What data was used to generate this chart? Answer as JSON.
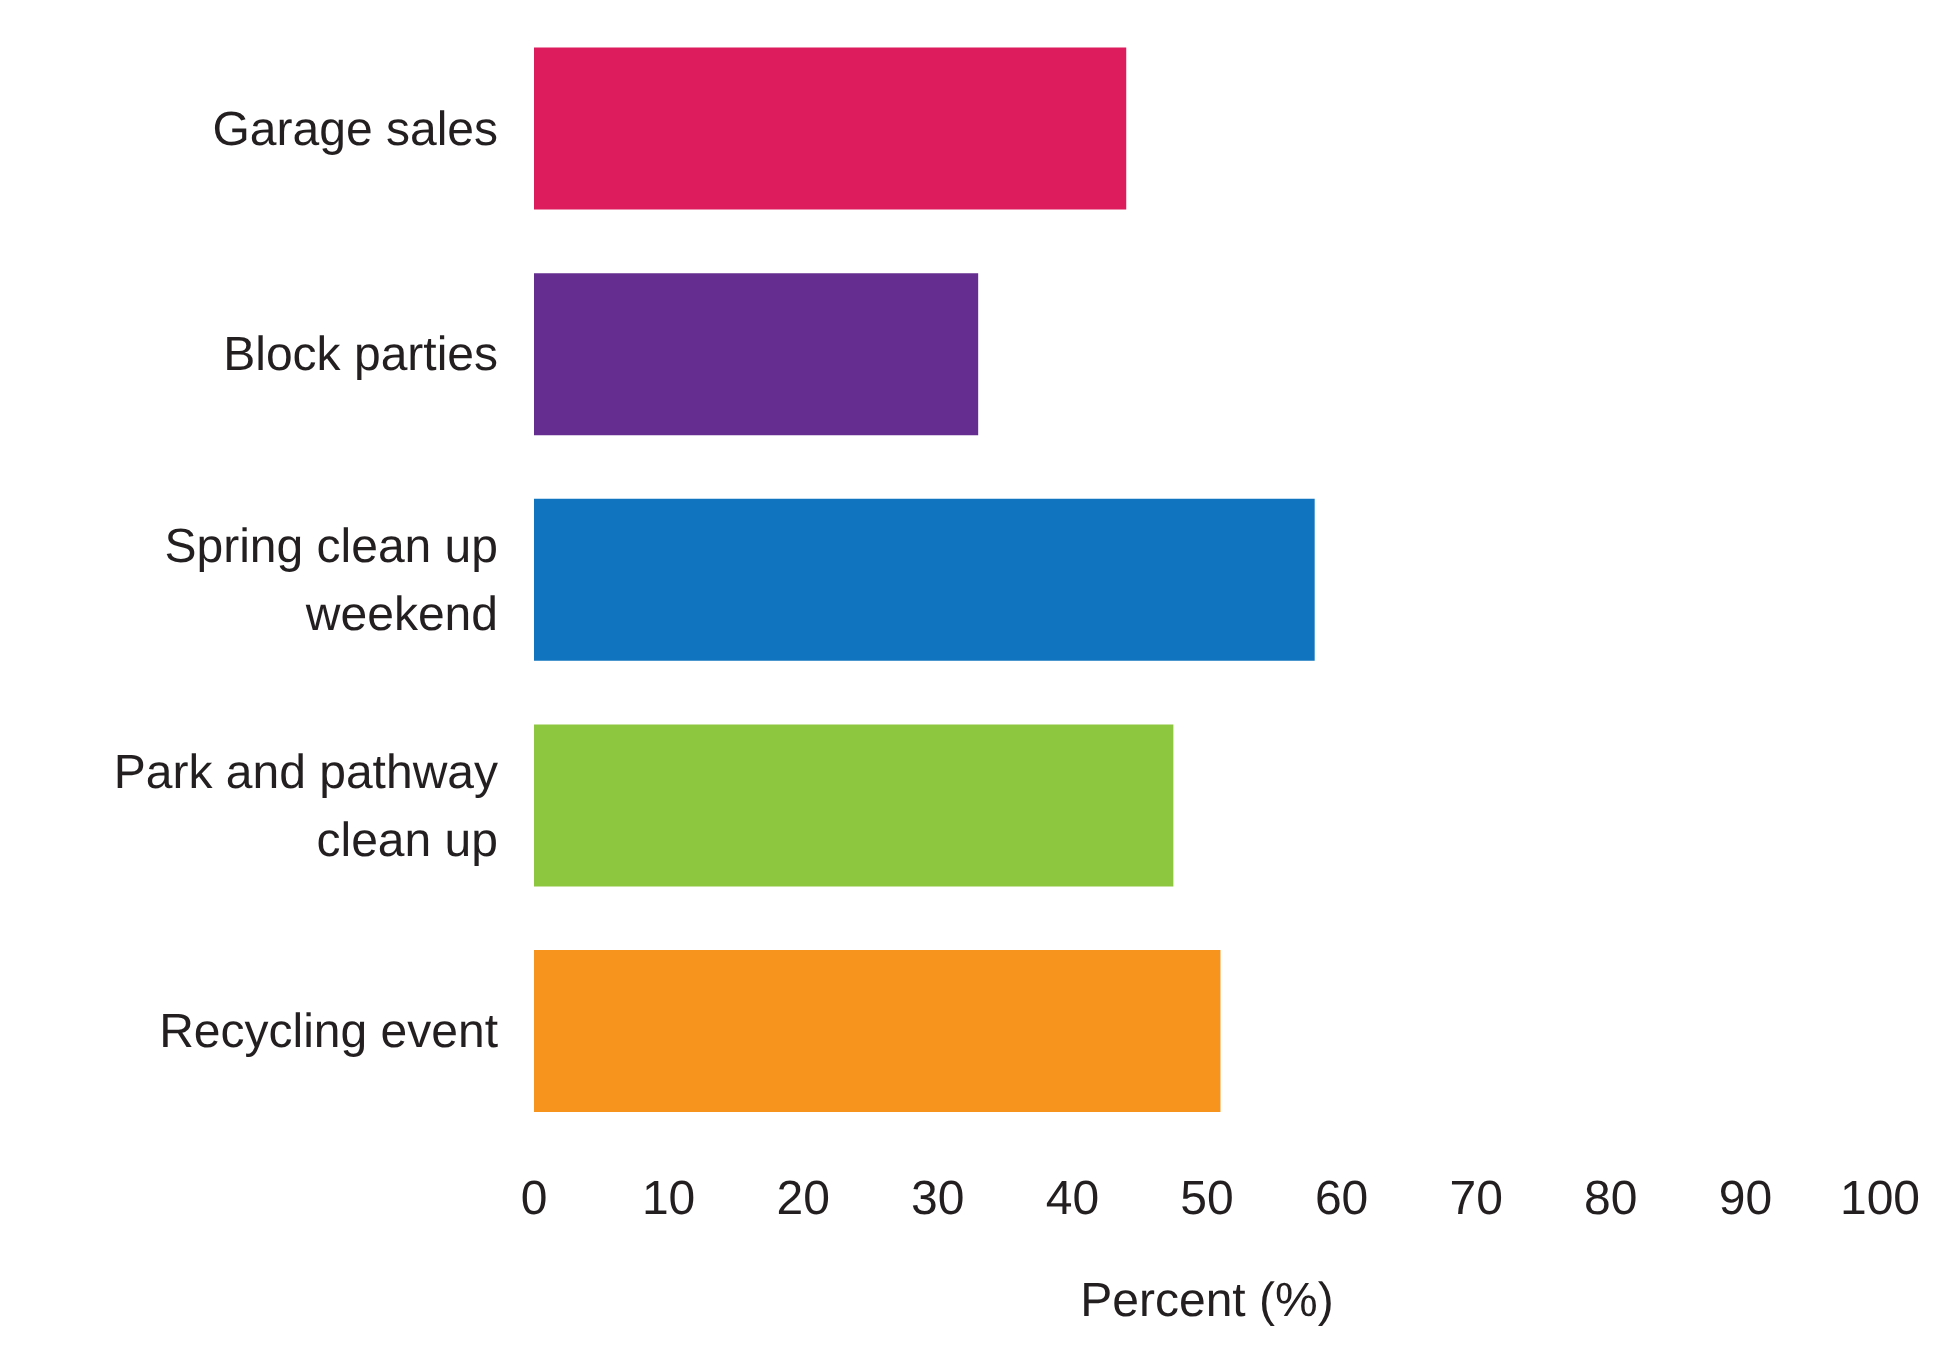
{
  "chart_data": {
    "type": "bar",
    "orientation": "horizontal",
    "categories": [
      "Garage sales",
      "Block parties",
      "Spring clean up weekend",
      "Park and pathway clean up",
      "Recycling event"
    ],
    "values": [
      44,
      33,
      58,
      47.5,
      51
    ],
    "colors": [
      "#dc1c5c",
      "#662d91",
      "#1174be",
      "#8dc63f",
      "#f7941d"
    ],
    "xlabel": "Percent (%)",
    "xlim": [
      0,
      100
    ],
    "xticks": [
      0,
      10,
      20,
      30,
      40,
      50,
      60,
      70,
      80,
      90,
      100
    ],
    "grid": false,
    "legend": false
  }
}
